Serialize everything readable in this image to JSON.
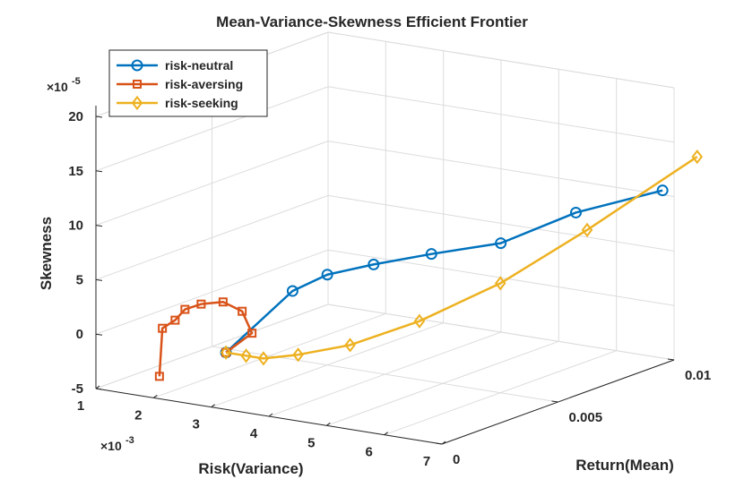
{
  "chart_data": {
    "type": "line3d",
    "title": "Mean-Variance-Skewness Efficient Frontier",
    "xlabel": "Risk(Variance)",
    "ylabel": "Return(Mean)",
    "zlabel": "Skewness",
    "x_exponent": "×10",
    "x_exponent_power": "-3",
    "z_exponent": "×10",
    "z_exponent_power": "-5",
    "x_ticks": [
      "1",
      "2",
      "3",
      "4",
      "5",
      "6",
      "7"
    ],
    "y_ticks": [
      "0",
      "0.005",
      "0.01"
    ],
    "z_ticks": [
      "-5",
      "0",
      "5",
      "10",
      "15",
      "20"
    ],
    "legend": {
      "location": "top-left",
      "entries": [
        "risk-neutral",
        "risk-aversing",
        "risk-seeking"
      ]
    },
    "series": [
      {
        "name": "risk-neutral",
        "color": "#0072BD",
        "marker": "circle",
        "points": [
          [
            2.45,
            0.002,
            -2.0
          ],
          [
            2.8,
            0.004,
            2.4
          ],
          [
            3.0,
            0.005,
            3.3
          ],
          [
            3.4,
            0.006,
            3.8
          ],
          [
            4.0,
            0.007,
            4.5
          ],
          [
            4.8,
            0.008,
            5.4
          ],
          [
            5.7,
            0.009,
            8.2
          ],
          [
            6.8,
            0.01,
            10.4
          ]
        ]
      },
      {
        "name": "risk-aversing",
        "color": "#D95319",
        "marker": "square",
        "points": [
          [
            1.9,
            0.0005,
            -3.5
          ],
          [
            1.75,
            0.001,
            0.4
          ],
          [
            1.85,
            0.0013,
            1.0
          ],
          [
            1.9,
            0.0016,
            1.8
          ],
          [
            2.1,
            0.0018,
            2.3
          ],
          [
            2.4,
            0.002,
            2.6
          ],
          [
            2.65,
            0.0022,
            1.8
          ],
          [
            2.7,
            0.0025,
            -0.4
          ],
          [
            2.45,
            0.002,
            -2.0
          ]
        ]
      },
      {
        "name": "risk-seeking",
        "color": "#EDB120",
        "marker": "diamond",
        "points": [
          [
            2.45,
            0.002,
            -2.0
          ],
          [
            2.8,
            0.002,
            -2.0
          ],
          [
            3.1,
            0.002,
            -2.0
          ],
          [
            3.5,
            0.0025,
            -1.7
          ],
          [
            4.2,
            0.003,
            -0.6
          ],
          [
            5.0,
            0.004,
            1.5
          ],
          [
            5.8,
            0.0055,
            4.5
          ],
          [
            6.7,
            0.007,
            9.0
          ],
          [
            7.4,
            0.01,
            14.0
          ]
        ]
      }
    ]
  }
}
